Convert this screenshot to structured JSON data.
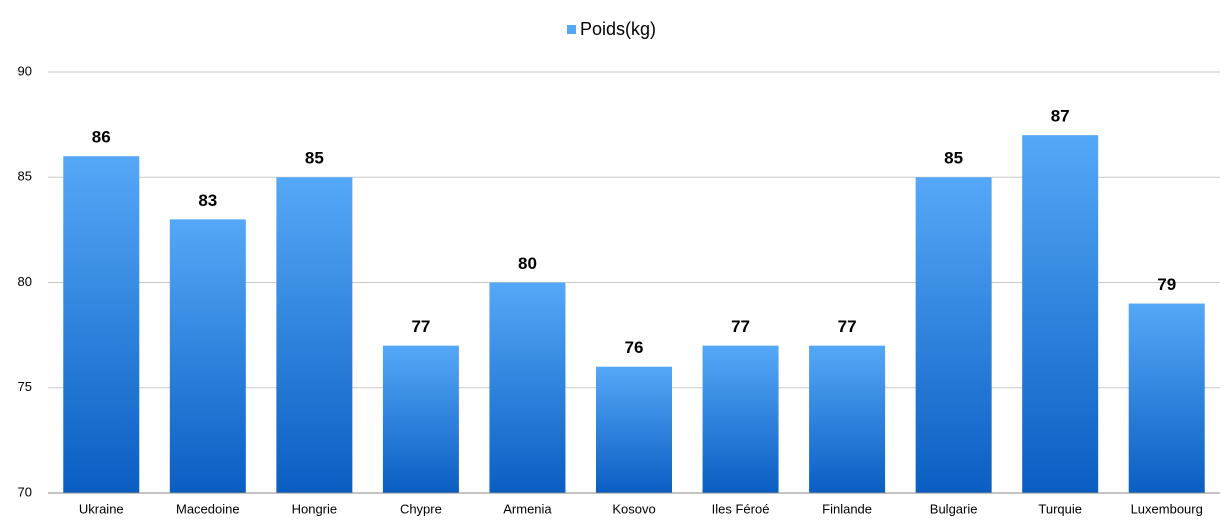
{
  "chart_data": {
    "type": "bar",
    "categories": [
      "Ukraine",
      "Macedoine",
      "Hongrie",
      "Chypre",
      "Armenia",
      "Kosovo",
      "Iles Féroé",
      "Finlande",
      "Bulgarie",
      "Turquie",
      "Luxembourg"
    ],
    "series": [
      {
        "name": "Poids(kg)",
        "color": "#55a8f7",
        "values": [
          86,
          83,
          85,
          77,
          80,
          76,
          77,
          77,
          85,
          87,
          79
        ]
      }
    ],
    "ylim": [
      70,
      90
    ],
    "yticks": [
      70,
      75,
      80,
      85,
      90
    ],
    "grid": true,
    "legend": "top"
  }
}
